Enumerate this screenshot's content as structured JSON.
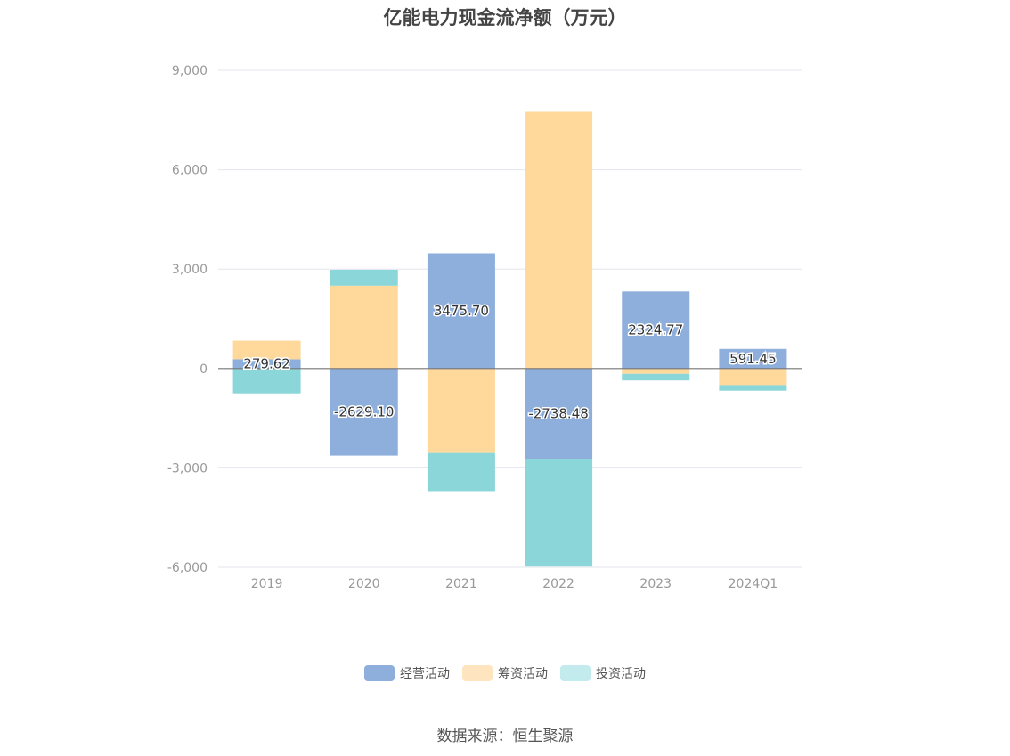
{
  "chart_data": {
    "type": "bar",
    "stacked": true,
    "title": "亿能电力现金流净额（万元）",
    "categories": [
      "2019",
      "2020",
      "2021",
      "2022",
      "2023",
      "2024Q1"
    ],
    "series": [
      {
        "name": "经营活动",
        "color": "#8eaedb",
        "values": [
          279.62,
          -2629.1,
          3475.7,
          -2738.48,
          2324.77,
          591.45
        ],
        "labels": [
          "279.62",
          "-2629.10",
          "3475.70",
          "-2738.48",
          "2324.77",
          "591.45"
        ]
      },
      {
        "name": "筹资活动",
        "color": "#ffd99c",
        "values": [
          560,
          2500,
          -2550,
          7750,
          -160,
          -500
        ]
      },
      {
        "name": "投资活动",
        "color": "#8ad6d9",
        "values": [
          -750,
          480,
          -1150,
          -3240,
          -200,
          -170
        ]
      }
    ],
    "ylim": [
      -6000,
      9000
    ],
    "yticks": [
      "9,000",
      "6,000",
      "3,000",
      "0",
      "-3,000",
      "-6,000"
    ],
    "ytick_values": [
      9000,
      6000,
      3000,
      0,
      -3000,
      -6000
    ],
    "grid": true,
    "legend_position": "bottom"
  },
  "legend": [
    {
      "label": "经营活动",
      "color": "#8eaedb"
    },
    {
      "label": "筹资活动",
      "color": "#ffe5bf"
    },
    {
      "label": "投资活动",
      "color": "#c3ebed"
    }
  ],
  "source": "数据来源：恒生聚源"
}
